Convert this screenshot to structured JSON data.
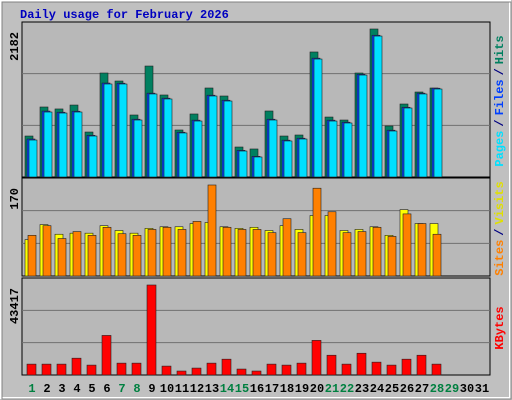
{
  "chart_data": [
    {
      "type": "bar",
      "title": "Daily usage for February 2026",
      "ylim": [
        0,
        2182
      ],
      "yticks": [
        2182
      ],
      "series": [
        {
          "name": "Hits",
          "color": "#008060",
          "values": [
            604,
            1032,
            1003,
            1061,
            663,
            1533,
            1415,
            914,
            1636,
            1209,
            693,
            929,
            1312,
            1194,
            442,
            413,
            973,
            604,
            619,
            1843,
            884,
            840,
            1533,
            2182,
            752,
            1076,
            1253,
            1312,
            null,
            null,
            null
          ]
        },
        {
          "name": "Files",
          "color": "#0040ff",
          "values": [
            560,
            972,
            955,
            970,
            615,
            1385,
            1383,
            852,
            1236,
            1162,
            660,
            838,
            1206,
            1132,
            393,
            305,
            852,
            543,
            572,
            1752,
            838,
            808,
            1515,
            2090,
            690,
            1028,
            1236,
            1309,
            null,
            null,
            null
          ]
        },
        {
          "name": "Pages",
          "color": "#00e0ff",
          "values": [
            545,
            958,
            943,
            958,
            604,
            1371,
            1371,
            840,
            1224,
            1150,
            649,
            825,
            1194,
            1120,
            383,
            295,
            840,
            531,
            560,
            1739,
            825,
            796,
            1503,
            2078,
            678,
            1017,
            1224,
            1297,
            null,
            null,
            null
          ]
        }
      ]
    },
    {
      "type": "bar",
      "ylim": [
        0,
        170
      ],
      "yticks": [
        170
      ],
      "series": [
        {
          "name": "Visits",
          "color": "#ffff00",
          "values": [
            68,
            96,
            78,
            80,
            80,
            94,
            85,
            80,
            89,
            92,
            92,
            98,
            100,
            92,
            89,
            91,
            85,
            94,
            87,
            113,
            113,
            85,
            87,
            92,
            76,
            124,
            98,
            98,
            null,
            null,
            null
          ]
        },
        {
          "name": "Sites",
          "color": "#ff8000",
          "values": [
            76,
            94,
            70,
            83,
            76,
            91,
            79,
            76,
            87,
            91,
            87,
            102,
            170,
            91,
            87,
            87,
            81,
            107,
            81,
            164,
            120,
            81,
            83,
            91,
            74,
            116,
            98,
            78,
            null,
            null,
            null
          ]
        }
      ]
    },
    {
      "type": "bar",
      "ylim": [
        0,
        43417
      ],
      "yticks": [
        43417
      ],
      "categories": [
        "1",
        "2",
        "3",
        "4",
        "5",
        "6",
        "7",
        "8",
        "9",
        "10",
        "11",
        "12",
        "13",
        "14",
        "15",
        "16",
        "17",
        "18",
        "19",
        "20",
        "21",
        "22",
        "23",
        "24",
        "25",
        "26",
        "27",
        "28",
        "29",
        "30",
        "31"
      ],
      "category_colors": [
        "#008040",
        "#000000",
        "#000000",
        "#000000",
        "#000000",
        "#000000",
        "#008040",
        "#008040",
        "#000000",
        "#000000",
        "#000000",
        "#000000",
        "#000000",
        "#008040",
        "#008040",
        "#000000",
        "#000000",
        "#000000",
        "#000000",
        "#000000",
        "#008040",
        "#008040",
        "#000000",
        "#000000",
        "#000000",
        "#000000",
        "#000000",
        "#008040",
        "#008040",
        "#000000",
        "#000000"
      ],
      "series": [
        {
          "name": "KBytes",
          "color": "#ff0000",
          "values": [
            5248,
            5248,
            5248,
            8111,
            4771,
            19084,
            5725,
            5725,
            43417,
            4294,
            1908,
            3340,
            5725,
            7634,
            2863,
            1908,
            5248,
            4771,
            5725,
            16699,
            9542,
            5248,
            10497,
            6203,
            4771,
            7634,
            9542,
            5248,
            null,
            null,
            null
          ]
        }
      ]
    }
  ],
  "legend_separator": "/"
}
